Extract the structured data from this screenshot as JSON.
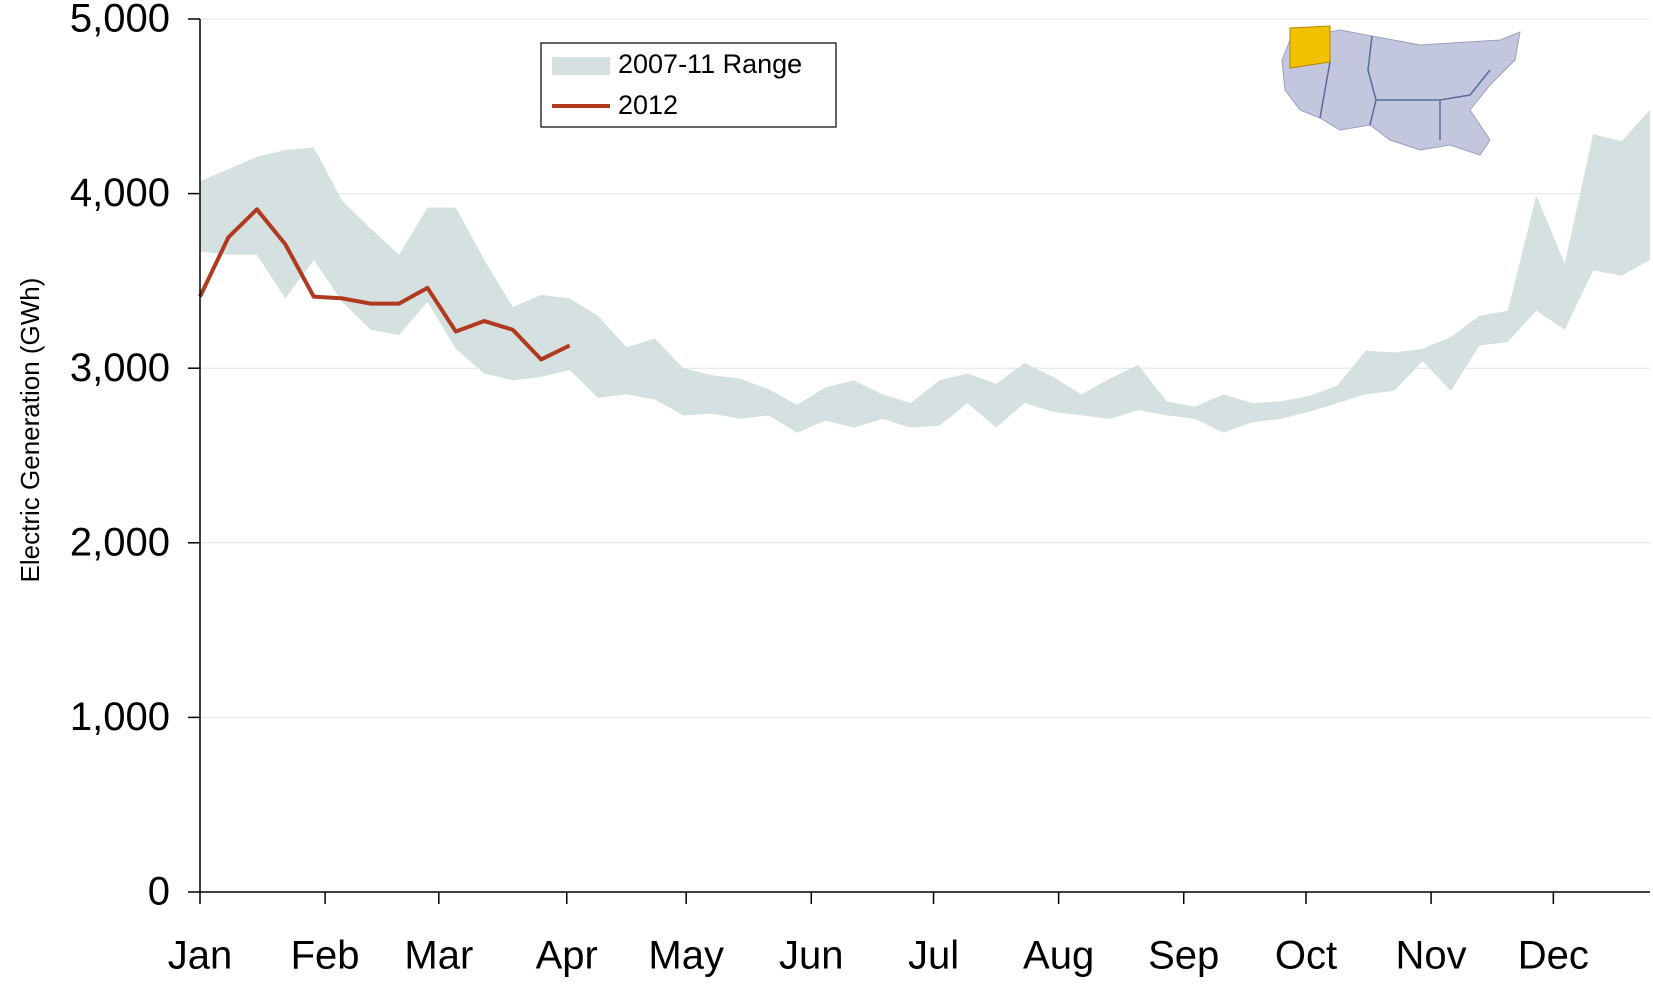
{
  "chart_data": {
    "type": "range-line",
    "y_label": "Electric Generation (GWh)",
    "x": [
      0,
      1,
      2,
      3,
      4,
      5,
      6,
      7,
      8,
      9,
      10,
      11,
      12,
      13,
      14,
      15,
      16,
      17,
      18,
      19,
      20,
      21,
      22,
      23,
      24,
      25,
      26,
      27,
      28,
      29,
      30,
      31,
      32,
      33,
      34,
      35,
      36,
      37,
      38,
      39,
      40,
      41,
      42,
      43,
      44,
      45,
      46,
      47,
      48,
      49,
      50,
      51
    ],
    "xlim": [
      0,
      51
    ],
    "xticks": [
      {
        "value": 0,
        "label": "Jan"
      },
      {
        "value": 4.4,
        "label": "Feb"
      },
      {
        "value": 8.4,
        "label": "Mar"
      },
      {
        "value": 12.9,
        "label": "Apr"
      },
      {
        "value": 17.1,
        "label": "May"
      },
      {
        "value": 21.5,
        "label": "Jun"
      },
      {
        "value": 25.8,
        "label": "Jul"
      },
      {
        "value": 30.2,
        "label": "Aug"
      },
      {
        "value": 34.6,
        "label": "Sep"
      },
      {
        "value": 38.9,
        "label": "Oct"
      },
      {
        "value": 43.3,
        "label": "Nov"
      },
      {
        "value": 47.6,
        "label": "Dec"
      }
    ],
    "ylim": [
      0,
      5000
    ],
    "yticks": [
      0,
      {
        "value": 1000,
        "label": "1,000"
      },
      {
        "value": 2000,
        "label": "2,000"
      },
      {
        "value": 3000,
        "label": "3,000"
      },
      {
        "value": 4000,
        "label": "4,000"
      },
      {
        "value": 5000,
        "label": "5,000"
      }
    ],
    "grid": true,
    "range": {
      "name": "2007-11 Range",
      "color": "#d5e1e1",
      "high": [
        4070,
        4140,
        4210,
        4250,
        4265,
        3960,
        3800,
        3650,
        3920,
        3920,
        3620,
        3350,
        3420,
        3400,
        3300,
        3120,
        3170,
        3000,
        2960,
        2940,
        2880,
        2790,
        2890,
        2930,
        2850,
        2800,
        2930,
        2970,
        2910,
        3030,
        2950,
        2850,
        2940,
        3020,
        2810,
        2780,
        2850,
        2800,
        2810,
        2840,
        2900,
        3100,
        3090,
        3110,
        3180,
        3300,
        3330,
        3990,
        3600,
        4340,
        4300,
        4480
      ],
      "low": [
        3670,
        3650,
        3650,
        3400,
        3620,
        3380,
        3220,
        3190,
        3380,
        3110,
        2970,
        2930,
        2950,
        2990,
        2830,
        2850,
        2820,
        2730,
        2740,
        2710,
        2730,
        2630,
        2700,
        2660,
        2710,
        2660,
        2670,
        2800,
        2660,
        2800,
        2750,
        2730,
        2710,
        2760,
        2730,
        2710,
        2630,
        2690,
        2710,
        2750,
        2800,
        2850,
        2870,
        3040,
        2870,
        3130,
        3150,
        3330,
        3220,
        3560,
        3530,
        3620
      ]
    },
    "series": [
      {
        "name": "2012",
        "color": "#b03a20",
        "values": [
          3410,
          3750,
          3910,
          3710,
          3410,
          3400,
          3370,
          3370,
          3460,
          3210,
          3270,
          3220,
          3050,
          3130,
          null,
          null,
          null,
          null,
          null,
          null,
          null,
          null,
          null,
          null,
          null,
          null,
          null,
          null,
          null,
          null,
          null,
          null,
          null,
          null,
          null,
          null,
          null,
          null,
          null,
          null,
          null,
          null,
          null,
          null,
          null,
          null,
          null,
          null,
          null,
          null,
          null,
          null
        ]
      }
    ]
  }
}
